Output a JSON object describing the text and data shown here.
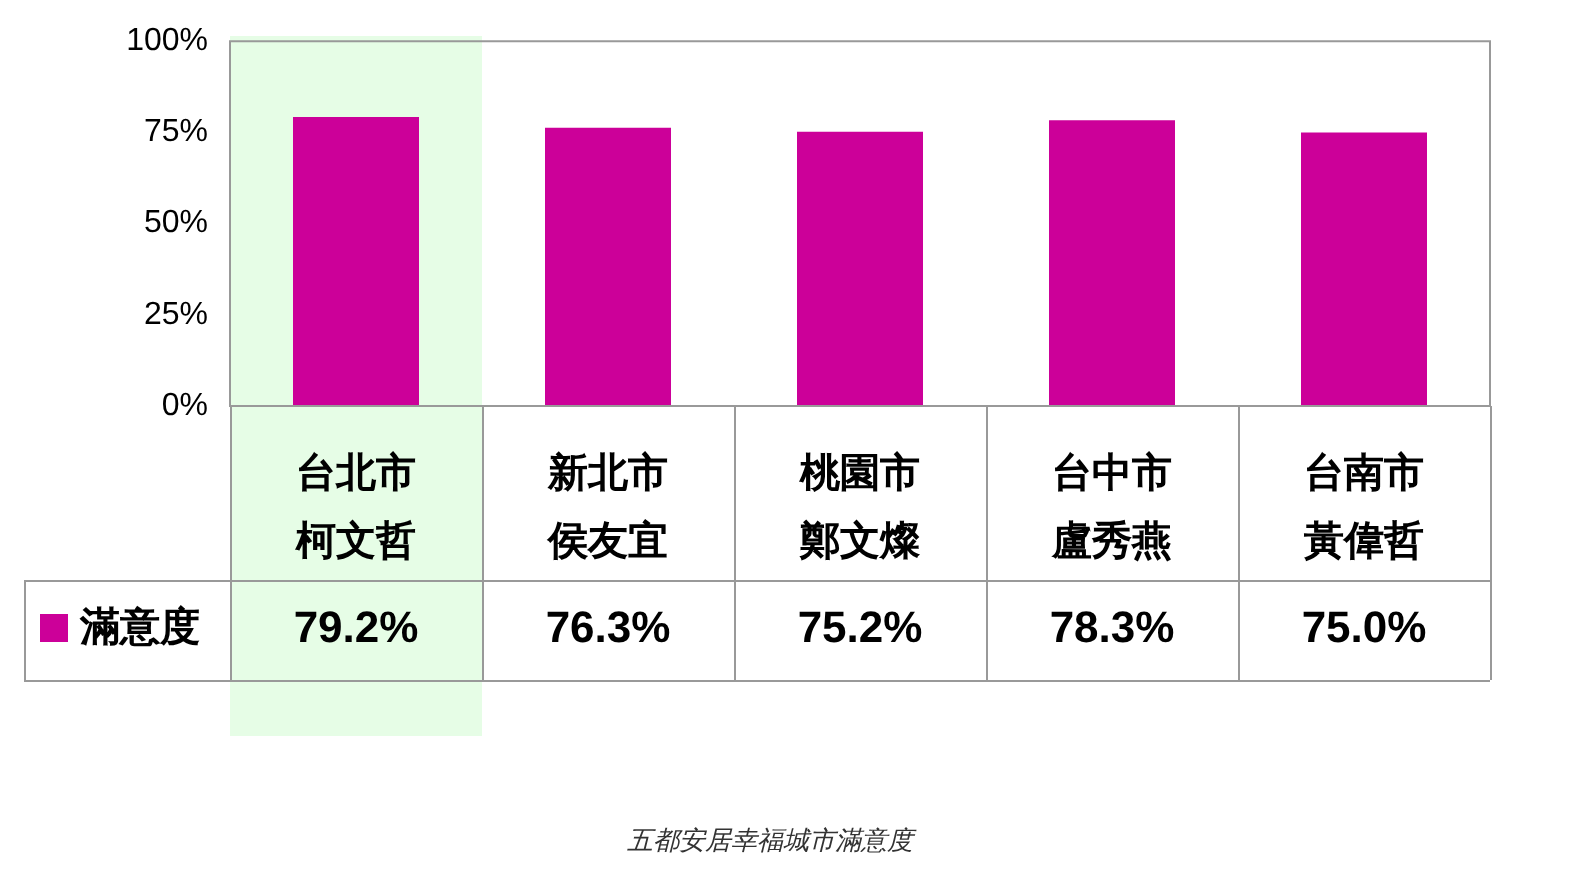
{
  "chart_data": {
    "type": "bar",
    "categories": [
      "台北市柯文哲",
      "新北市侯友宜",
      "桃園市鄭文燦",
      "台中市盧秀燕",
      "台南市黃偉哲"
    ],
    "series": [
      {
        "name": "滿意度",
        "color": "#cc0099",
        "values": [
          79.2,
          76.3,
          75.2,
          78.3,
          75.0
        ]
      }
    ],
    "ylim": [
      0,
      100
    ],
    "yticks": [
      {
        "value": 0,
        "label": "0%"
      },
      {
        "value": 25,
        "label": "25%"
      },
      {
        "value": 50,
        "label": "50%"
      },
      {
        "value": 75,
        "label": "75%"
      },
      {
        "value": 100,
        "label": "100%"
      }
    ],
    "value_labels": [
      "79.2%",
      "76.3%",
      "75.2%",
      "78.3%",
      "75.0%"
    ],
    "bands": [
      {
        "axis": "x",
        "from": "台北市柯文哲",
        "to": "台北市柯文哲",
        "color": "#e6fde6"
      }
    ],
    "legend": "bottom left",
    "grid": false,
    "annotations": [
      "五都安居幸福城市滿意度"
    ]
  }
}
